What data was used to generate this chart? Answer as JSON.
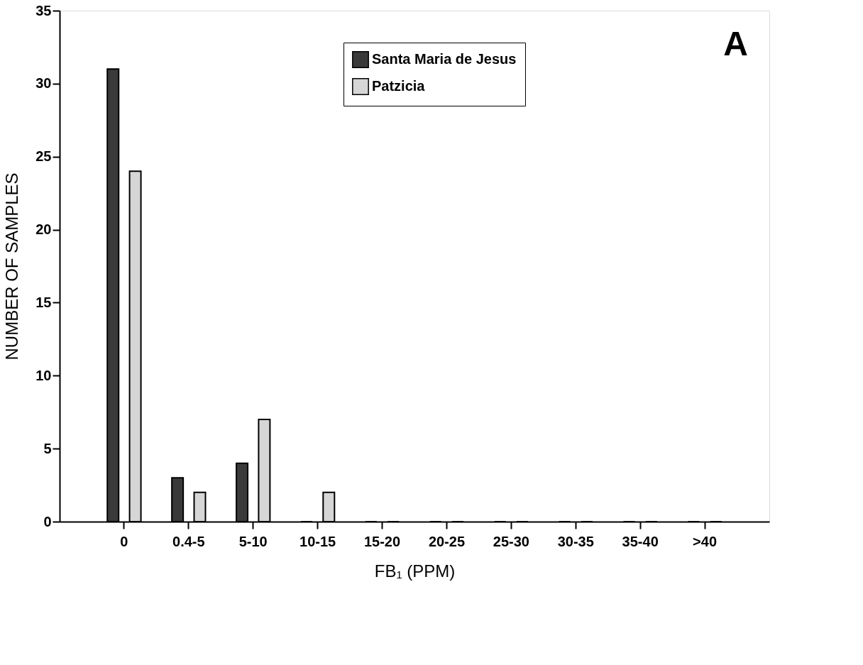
{
  "chart_data": {
    "type": "bar",
    "xlabel": "FB₁ (PPM)",
    "ylabel": "NUMBER OF SAMPLES",
    "categories": [
      "0",
      "0.4-5",
      "5-10",
      "10-15",
      "15-20",
      "20-25",
      "25-30",
      "30-35",
      "35-40",
      ">40"
    ],
    "series": [
      {
        "name": "Santa Maria de Jesus",
        "color": "#3a3a3a",
        "values": [
          31,
          3,
          4,
          0,
          0,
          0,
          0,
          0,
          0,
          0
        ]
      },
      {
        "name": "Patzicia",
        "color": "#d6d6d6",
        "values": [
          24,
          2,
          7,
          2,
          0,
          0,
          0,
          0,
          0,
          0
        ]
      }
    ],
    "ylim": [
      0,
      35
    ],
    "yticks": [
      0,
      5,
      10,
      15,
      20,
      25,
      30,
      35
    ],
    "annotations": [
      "A"
    ],
    "legend": "top",
    "grid": false
  }
}
